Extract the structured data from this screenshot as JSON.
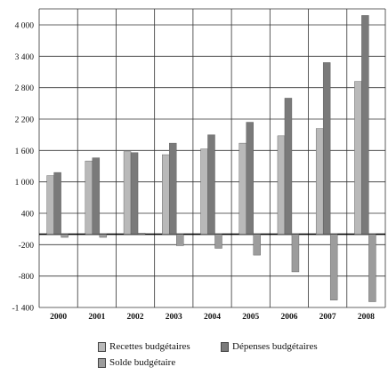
{
  "chart_data": {
    "type": "bar",
    "categories": [
      "2000",
      "2001",
      "2002",
      "2003",
      "2004",
      "2005",
      "2006",
      "2007",
      "2008"
    ],
    "series": [
      {
        "name": "Recettes budgétaires",
        "values": [
          1120,
          1400,
          1580,
          1520,
          1630,
          1740,
          1880,
          2020,
          2920
        ]
      },
      {
        "name": "Dépenses budgétaires",
        "values": [
          1180,
          1460,
          1560,
          1740,
          1900,
          2140,
          2600,
          3280,
          4180
        ]
      },
      {
        "name": "Solde budgétaire",
        "values": [
          -60,
          -60,
          20,
          -220,
          -270,
          -400,
          -720,
          -1260,
          -1290
        ]
      }
    ],
    "yticks": [
      "4 000",
      "3 400",
      "2 800",
      "2 200",
      "1 600",
      "1 000",
      "400",
      "-200",
      "-800",
      "-1 400"
    ],
    "ytick_values": [
      4000,
      3400,
      2800,
      2200,
      1600,
      1000,
      400,
      -200,
      -800,
      -1400
    ],
    "ylim": [
      -1400,
      4100
    ],
    "grid": true,
    "legend_position": "bottom",
    "colors": {
      "recettes": "#b9b9b9",
      "depenses": "#7a7a7a",
      "solde": "#9c9c9c",
      "grid": "#333333"
    }
  }
}
